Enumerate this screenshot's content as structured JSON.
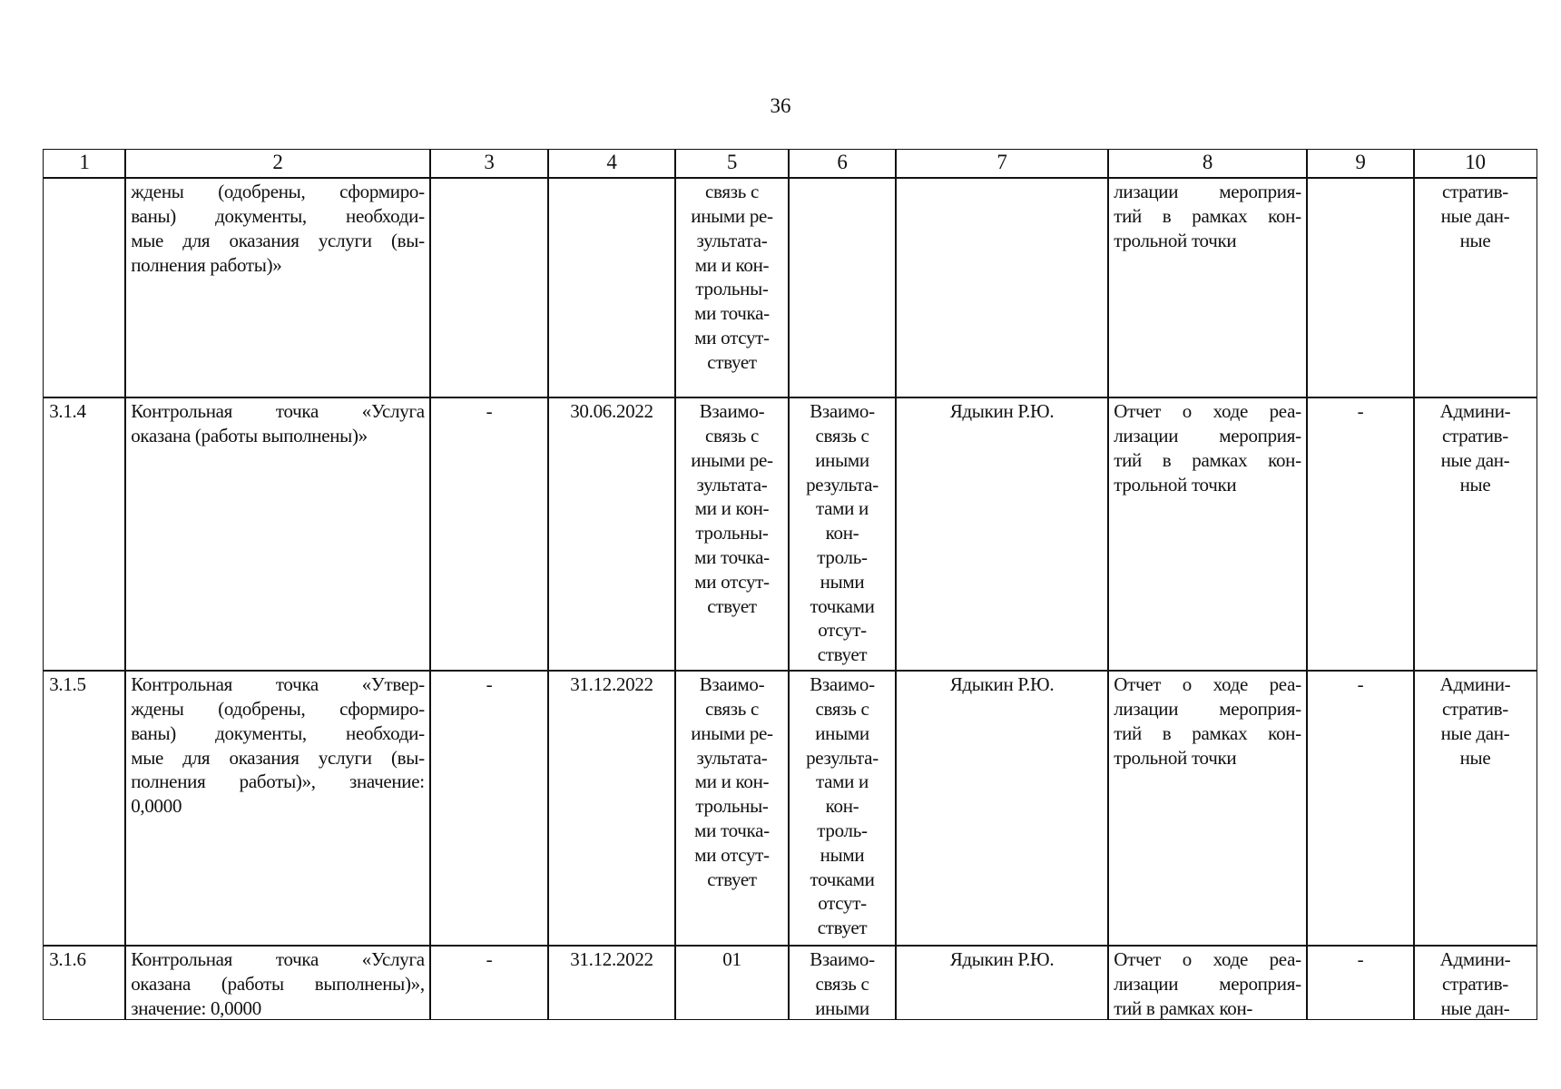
{
  "page_number": "36",
  "table": {
    "header": [
      "1",
      "2",
      "3",
      "4",
      "5",
      "6",
      "7",
      "8",
      "9",
      "10"
    ],
    "rows": [
      {
        "cells": [
          [],
          [
            "ждены (одобрены, сформиро-",
            "ваны) документы, необходи-",
            "мые для оказания услуги (вы-",
            "полнения работы)»"
          ],
          [],
          [],
          [
            "связь с",
            "иными ре-",
            "зультата-",
            "ми и кон-",
            "трольны-",
            "ми точка-",
            "ми отсут-",
            "ствует"
          ],
          [],
          [],
          [
            "лизации мероприя-",
            "тий в рамках кон-",
            "трольной точки"
          ],
          [],
          [
            "стратив-",
            "ные дан-",
            "ные"
          ]
        ]
      },
      {
        "cells": [
          [
            "3.1.4"
          ],
          [
            "Контрольная точка «Услуга",
            "оказана (работы выполнены)»"
          ],
          [
            "-"
          ],
          [
            "30.06.2022"
          ],
          [
            "Взаимо-",
            "связь с",
            "иными ре-",
            "зультата-",
            "ми и кон-",
            "трольны-",
            "ми точка-",
            "ми отсут-",
            "ствует"
          ],
          [
            "Взаимо-",
            "связь с",
            "иными",
            "результа-",
            "тами и",
            "кон-",
            "троль-",
            "ными",
            "точками",
            "отсут-",
            "ствует"
          ],
          [
            "Ядыкин Р.Ю."
          ],
          [
            "Отчет о ходе реа-",
            "лизации мероприя-",
            "тий в рамках кон-",
            "трольной точки"
          ],
          [
            "-"
          ],
          [
            "Админи-",
            "стратив-",
            "ные дан-",
            "ные"
          ]
        ]
      },
      {
        "cells": [
          [
            "3.1.5"
          ],
          [
            "Контрольная точка «Утвер-",
            "ждены (одобрены, сформиро-",
            "ваны) документы, необходи-",
            "мые для оказания услуги (вы-",
            "полнения работы)», значение:",
            "0,0000"
          ],
          [
            "-"
          ],
          [
            "31.12.2022"
          ],
          [
            "Взаимо-",
            "связь с",
            "иными ре-",
            "зультата-",
            "ми и кон-",
            "трольны-",
            "ми точка-",
            "ми отсут-",
            "ствует"
          ],
          [
            "Взаимо-",
            "связь с",
            "иными",
            "результа-",
            "тами и",
            "кон-",
            "троль-",
            "ными",
            "точками",
            "отсут-",
            "ствует"
          ],
          [
            "Ядыкин Р.Ю."
          ],
          [
            "Отчет о ходе реа-",
            "лизации мероприя-",
            "тий в рамках кон-",
            "трольной точки"
          ],
          [
            "-"
          ],
          [
            "Админи-",
            "стратив-",
            "ные дан-",
            "ные"
          ]
        ]
      },
      {
        "cells": [
          [
            "3.1.6"
          ],
          [
            "Контрольная точка «Услуга",
            "оказана (работы выполнены)»,",
            "значение: 0,0000"
          ],
          [
            "-"
          ],
          [
            "31.12.2022"
          ],
          [
            "01"
          ],
          [
            "Взаимо-",
            "связь с",
            "иными"
          ],
          [
            "Ядыкин Р.Ю."
          ],
          [
            "Отчет о ходе реа-",
            "лизации мероприя-",
            "тий в рамках кон-"
          ],
          [
            "-"
          ],
          [
            "Админи-",
            "стратив-",
            "ные дан-"
          ]
        ]
      }
    ]
  }
}
